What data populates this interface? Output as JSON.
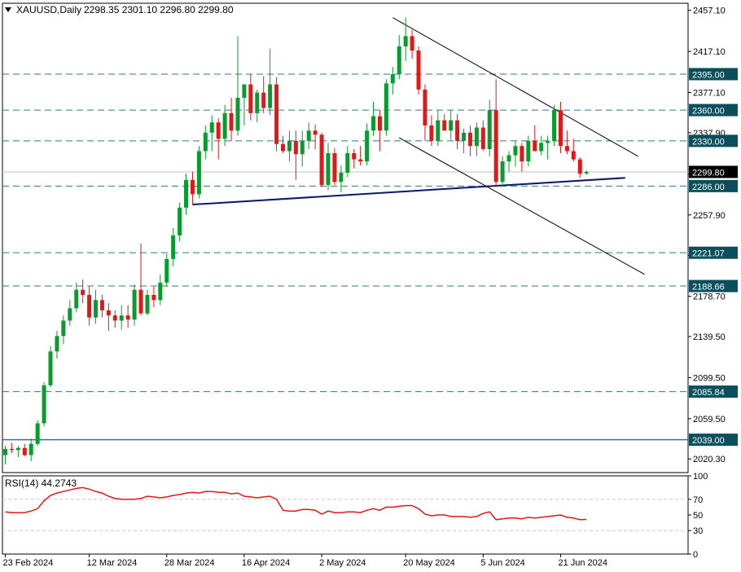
{
  "header": {
    "title": "XAUUSD,Daily",
    "ohlc": "2298.35 2301.10 2296.80 2299.80",
    "rsi_label": "RSI(14) 44.2743"
  },
  "colors": {
    "bull": "#0a9b2e",
    "bear": "#e01818",
    "level_line": "#2a7a86",
    "level_box": "#0a4f5b",
    "trend_support": "#0b1670",
    "channel": "#000000",
    "rsi": "#e01818",
    "current_price_box": "#000000"
  },
  "chart_data": {
    "type": "candlestick",
    "symbol": "XAUUSD",
    "timeframe": "Daily",
    "current_price": 2299.8,
    "y_ticks": [
      "2457.10",
      "2417.10",
      "2377.10",
      "2337.90",
      "2297.90",
      "2257.90",
      "2218.50",
      "2178.70",
      "2139.50",
      "2099.50",
      "2059.50",
      "2020.30"
    ],
    "ylim": [
      2007,
      2464
    ],
    "x_labels": [
      {
        "index": 0,
        "label": "23 Feb 2024"
      },
      {
        "index": 13,
        "label": "12 Mar 2024"
      },
      {
        "index": 25,
        "label": "28 Mar 2024"
      },
      {
        "index": 37,
        "label": "16 Apr 2024"
      },
      {
        "index": 49,
        "label": "2 May 2024"
      },
      {
        "index": 62,
        "label": "20 May 2024"
      },
      {
        "index": 74,
        "label": "5 Jun 2024"
      },
      {
        "index": 86,
        "label": "21 Jun 2024"
      }
    ],
    "horizontal_levels": [
      {
        "value": 2395.0,
        "label": "2395.00"
      },
      {
        "value": 2360.0,
        "label": "2360.00"
      },
      {
        "value": 2330.0,
        "label": "2330.00"
      },
      {
        "value": 2286.0,
        "label": "2286.00"
      },
      {
        "value": 2221.07,
        "label": "2221.07"
      },
      {
        "value": 2188.66,
        "label": "2188.66"
      },
      {
        "value": 2085.84,
        "label": "2085.84"
      },
      {
        "value": 2039.0,
        "label": "2039.00",
        "solid": true
      }
    ],
    "trendlines": [
      {
        "name": "support",
        "from": [
          29,
          2268
        ],
        "to": [
          96,
          2294
        ]
      },
      {
        "name": "channel-upper",
        "from": [
          60,
          2450
        ],
        "to": [
          98,
          2315
        ]
      },
      {
        "name": "channel-lower",
        "from": [
          61,
          2333
        ],
        "to": [
          99,
          2200
        ]
      }
    ],
    "candles": [
      [
        2024,
        2033,
        2015,
        2030
      ],
      [
        2030,
        2036,
        2026,
        2029
      ],
      [
        2029,
        2033,
        2022,
        2031
      ],
      [
        2031,
        2035,
        2023,
        2024
      ],
      [
        2024,
        2040,
        2018,
        2035
      ],
      [
        2035,
        2058,
        2033,
        2055
      ],
      [
        2055,
        2095,
        2052,
        2092
      ],
      [
        2092,
        2130,
        2090,
        2125
      ],
      [
        2125,
        2145,
        2118,
        2140
      ],
      [
        2140,
        2160,
        2132,
        2155
      ],
      [
        2155,
        2175,
        2150,
        2167
      ],
      [
        2167,
        2192,
        2163,
        2185
      ],
      [
        2185,
        2195,
        2172,
        2180
      ],
      [
        2180,
        2188,
        2150,
        2158
      ],
      [
        2158,
        2185,
        2152,
        2175
      ],
      [
        2175,
        2180,
        2158,
        2165
      ],
      [
        2165,
        2172,
        2145,
        2160
      ],
      [
        2160,
        2165,
        2148,
        2155
      ],
      [
        2155,
        2170,
        2146,
        2160
      ],
      [
        2160,
        2170,
        2148,
        2156
      ],
      [
        2156,
        2190,
        2150,
        2185
      ],
      [
        2185,
        2230,
        2160,
        2162
      ],
      [
        2162,
        2185,
        2160,
        2180
      ],
      [
        2180,
        2188,
        2168,
        2175
      ],
      [
        2175,
        2200,
        2170,
        2192
      ],
      [
        2192,
        2220,
        2188,
        2215
      ],
      [
        2215,
        2245,
        2208,
        2238
      ],
      [
        2238,
        2270,
        2232,
        2265
      ],
      [
        2265,
        2298,
        2258,
        2292
      ],
      [
        2292,
        2300,
        2268,
        2278
      ],
      [
        2278,
        2325,
        2274,
        2320
      ],
      [
        2320,
        2345,
        2312,
        2338
      ],
      [
        2338,
        2355,
        2320,
        2348
      ],
      [
        2348,
        2352,
        2312,
        2332
      ],
      [
        2332,
        2365,
        2325,
        2357
      ],
      [
        2357,
        2372,
        2330,
        2340
      ],
      [
        2340,
        2432,
        2335,
        2372
      ],
      [
        2372,
        2385,
        2345,
        2385
      ],
      [
        2385,
        2395,
        2350,
        2357
      ],
      [
        2357,
        2380,
        2348,
        2377
      ],
      [
        2377,
        2393,
        2357,
        2362
      ],
      [
        2362,
        2420,
        2355,
        2385
      ],
      [
        2385,
        2392,
        2320,
        2327
      ],
      [
        2327,
        2335,
        2318,
        2320
      ],
      [
        2320,
        2340,
        2310,
        2330
      ],
      [
        2330,
        2340,
        2292,
        2317
      ],
      [
        2317,
        2340,
        2305,
        2330
      ],
      [
        2330,
        2348,
        2322,
        2340
      ],
      [
        2340,
        2346,
        2322,
        2336
      ],
      [
        2336,
        2338,
        2285,
        2287
      ],
      [
        2287,
        2328,
        2282,
        2318
      ],
      [
        2318,
        2323,
        2287,
        2290
      ],
      [
        2290,
        2306,
        2280,
        2299
      ],
      [
        2299,
        2325,
        2295,
        2318
      ],
      [
        2318,
        2322,
        2303,
        2312
      ],
      [
        2312,
        2325,
        2306,
        2310
      ],
      [
        2310,
        2347,
        2306,
        2340
      ],
      [
        2340,
        2368,
        2335,
        2354
      ],
      [
        2354,
        2360,
        2320,
        2340
      ],
      [
        2340,
        2390,
        2335,
        2386
      ],
      [
        2386,
        2402,
        2375,
        2395
      ],
      [
        2395,
        2433,
        2390,
        2422
      ],
      [
        2422,
        2450,
        2408,
        2432
      ],
      [
        2432,
        2438,
        2410,
        2418
      ],
      [
        2418,
        2422,
        2375,
        2380
      ],
      [
        2380,
        2385,
        2330,
        2345
      ],
      [
        2345,
        2355,
        2325,
        2330
      ],
      [
        2330,
        2360,
        2325,
        2350
      ],
      [
        2350,
        2356,
        2340,
        2340
      ],
      [
        2340,
        2360,
        2331,
        2350
      ],
      [
        2350,
        2356,
        2322,
        2330
      ],
      [
        2330,
        2342,
        2318,
        2338
      ],
      [
        2338,
        2345,
        2315,
        2325
      ],
      [
        2325,
        2348,
        2315,
        2343
      ],
      [
        2343,
        2350,
        2320,
        2322
      ],
      [
        2322,
        2370,
        2315,
        2360
      ],
      [
        2360,
        2390,
        2285,
        2290
      ],
      [
        2290,
        2315,
        2286,
        2310
      ],
      [
        2310,
        2320,
        2300,
        2316
      ],
      [
        2316,
        2330,
        2305,
        2325
      ],
      [
        2325,
        2328,
        2300,
        2310
      ],
      [
        2310,
        2335,
        2305,
        2330
      ],
      [
        2330,
        2345,
        2320,
        2320
      ],
      [
        2320,
        2335,
        2316,
        2328
      ],
      [
        2328,
        2335,
        2312,
        2330
      ],
      [
        2330,
        2365,
        2325,
        2360
      ],
      [
        2360,
        2368,
        2318,
        2325
      ],
      [
        2325,
        2340,
        2317,
        2320
      ],
      [
        2320,
        2332,
        2310,
        2312
      ],
      [
        2312,
        2314,
        2294,
        2298
      ],
      [
        2298.35,
        2301.1,
        2296.8,
        2299.8
      ]
    ],
    "rsi": {
      "name": "RSI(14)",
      "value": 44.2743,
      "levels": [
        70,
        30
      ],
      "y_ticks": [
        "100",
        "70",
        "50",
        "30",
        "0"
      ],
      "values": [
        54,
        53,
        53,
        53,
        55,
        58,
        68,
        75,
        78,
        80,
        82,
        84,
        85,
        83,
        80,
        78,
        74,
        71,
        70,
        70,
        70,
        71,
        74,
        73,
        72,
        73,
        75,
        76,
        78,
        79,
        78,
        80,
        80,
        79,
        79,
        77,
        78,
        74,
        73,
        72,
        73,
        74,
        70,
        56,
        55,
        55,
        57,
        57,
        56,
        51,
        55,
        53,
        53,
        54,
        54,
        53,
        56,
        58,
        56,
        60,
        60,
        61,
        62,
        62,
        58,
        51,
        49,
        50,
        50,
        48,
        48,
        48,
        47,
        48,
        52,
        54,
        44,
        45,
        46,
        46,
        45,
        47,
        46,
        47,
        48,
        49,
        50,
        47,
        46,
        44,
        44.27
      ]
    }
  }
}
